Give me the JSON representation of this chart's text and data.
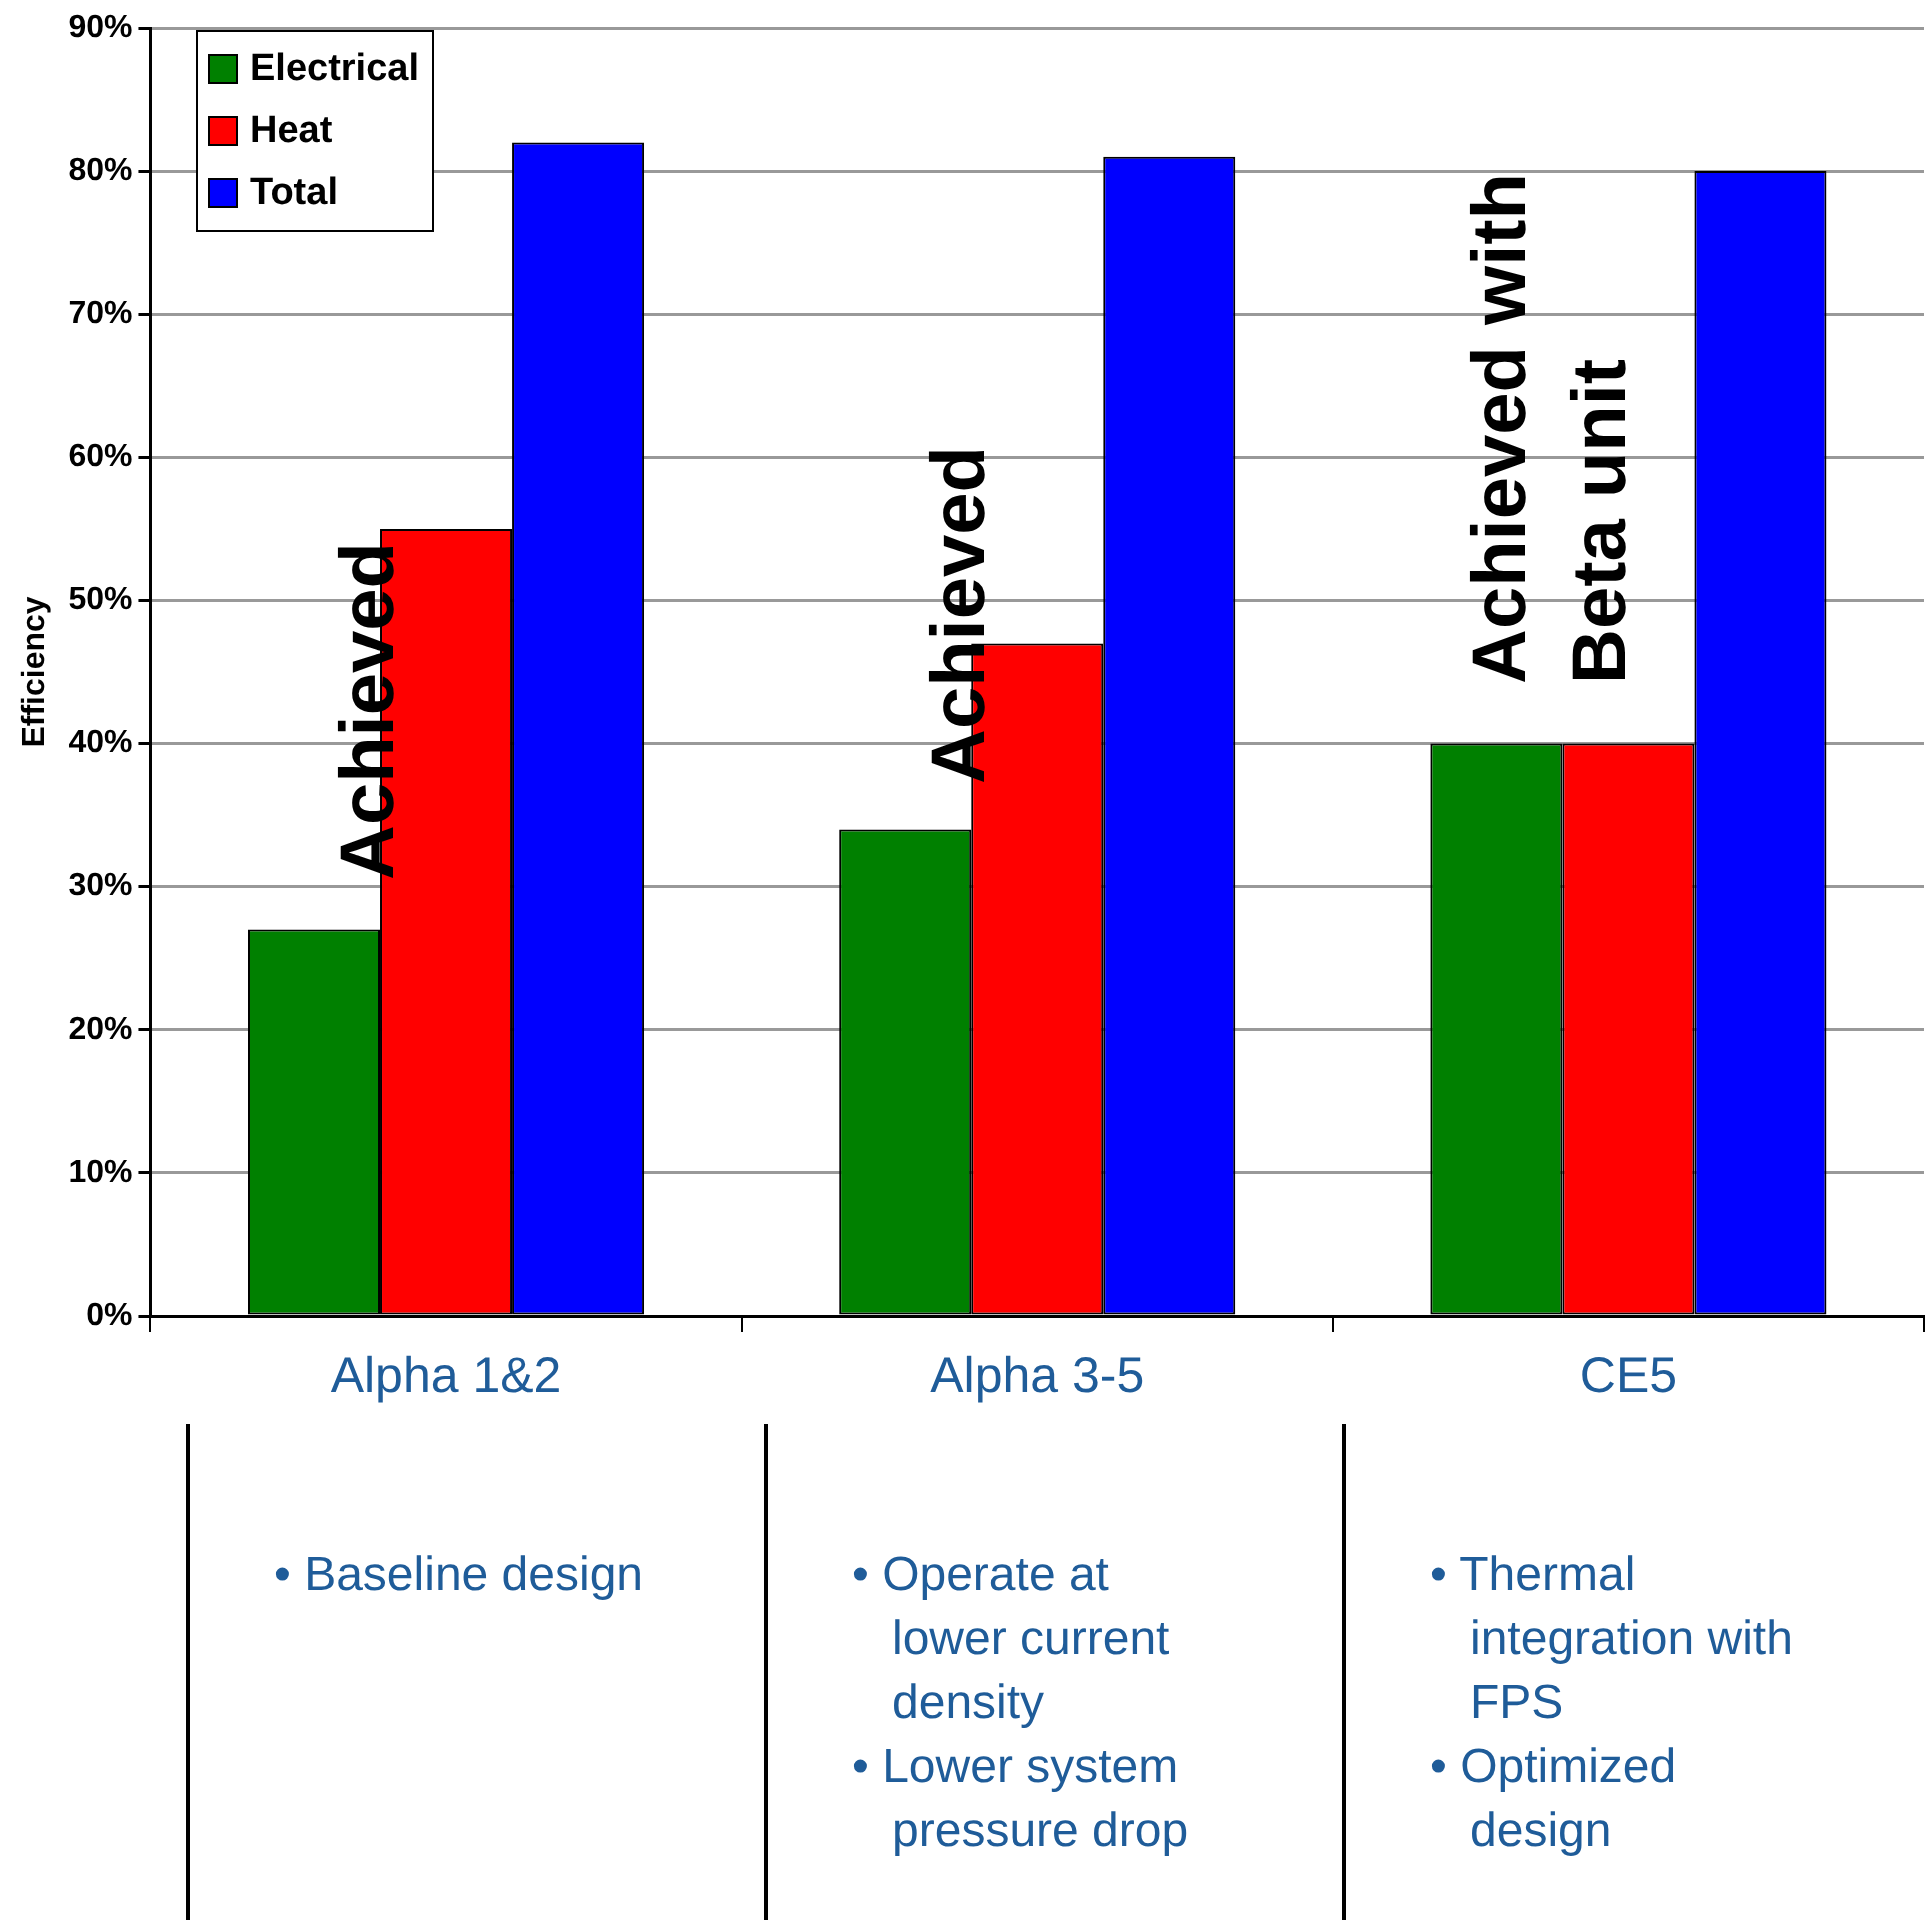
{
  "chart_data": {
    "type": "bar",
    "ylabel": "Efficiency",
    "categories": [
      "Alpha 1&2",
      "Alpha 3-5",
      "CE5"
    ],
    "series": [
      {
        "name": "Electrical",
        "color": "#008000",
        "values": [
          27,
          34,
          40
        ]
      },
      {
        "name": "Heat",
        "color": "#ff0000",
        "values": [
          55,
          47,
          40
        ]
      },
      {
        "name": "Total",
        "color": "#0000ff",
        "values": [
          82,
          81,
          80
        ]
      }
    ],
    "ylim": [
      0,
      90
    ],
    "yticks": [
      {
        "value": 0,
        "label": "0%"
      },
      {
        "value": 10,
        "label": "10%"
      },
      {
        "value": 20,
        "label": "20%"
      },
      {
        "value": 30,
        "label": "30%"
      },
      {
        "value": 40,
        "label": "40%"
      },
      {
        "value": 50,
        "label": "50%"
      },
      {
        "value": 60,
        "label": "60%"
      },
      {
        "value": 70,
        "label": "70%"
      },
      {
        "value": 80,
        "label": "80%"
      },
      {
        "value": 90,
        "label": "90%"
      }
    ],
    "grid": "y",
    "legend": "top left",
    "annotations": [
      "Achieved",
      "Achieved",
      "Achieved with\nBeta unit",
      "• Baseline design",
      "• Operate at lower current density",
      "• Lower system pressure drop",
      "• Thermal integration with FPS",
      "• Optimized design"
    ]
  }
}
